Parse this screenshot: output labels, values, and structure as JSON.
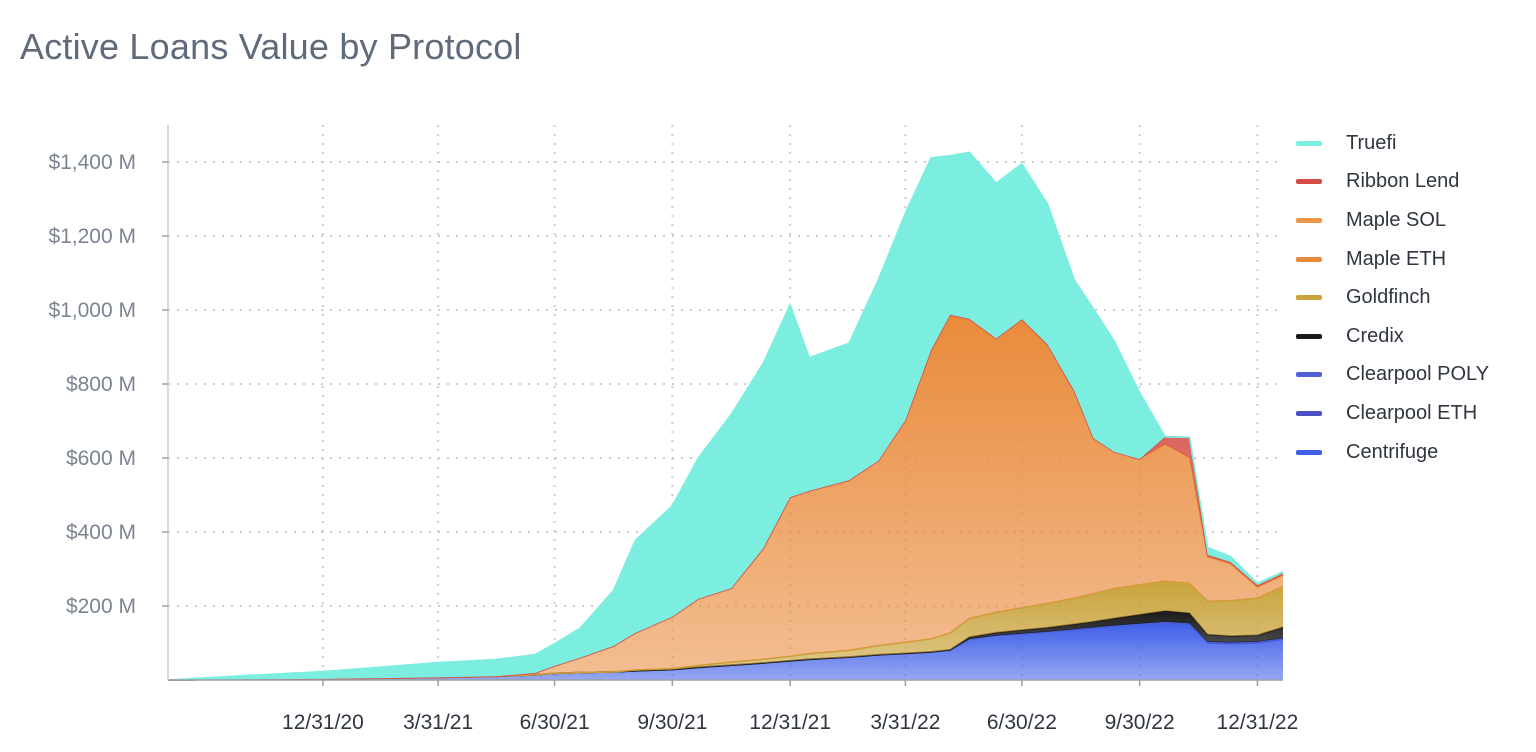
{
  "chart_data": {
    "type": "area",
    "title": "Active Loans Value by Protocol",
    "x_tick_labels": [
      "12/31/20",
      "3/31/21",
      "6/30/21",
      "9/30/21",
      "12/31/21",
      "3/31/22",
      "6/30/22",
      "9/30/22",
      "12/31/22"
    ],
    "x_ticks": [
      "2020-12-31",
      "2021-03-31",
      "2021-06-30",
      "2021-09-30",
      "2021-12-31",
      "2022-03-31",
      "2022-06-30",
      "2022-09-30",
      "2022-12-31"
    ],
    "xlim": [
      "2020-09-01",
      "2023-01-20"
    ],
    "y_tick_labels": [
      "$200 M",
      "$400 M",
      "$600 M",
      "$800 M",
      "$1,000 M",
      "$1,200 M",
      "$1,400 M"
    ],
    "y_ticks": [
      200,
      400,
      600,
      800,
      1000,
      1200,
      1400
    ],
    "ylim": [
      0,
      1500
    ],
    "grid": true,
    "legend_position": "right",
    "stacked": true,
    "x": [
      "2020-09-01",
      "2020-11-01",
      "2020-12-31",
      "2021-02-15",
      "2021-03-31",
      "2021-05-15",
      "2021-06-15",
      "2021-06-30",
      "2021-07-20",
      "2021-08-15",
      "2021-09-01",
      "2021-09-30",
      "2021-10-20",
      "2021-11-15",
      "2021-12-10",
      "2021-12-31",
      "2022-01-15",
      "2022-02-15",
      "2022-03-10",
      "2022-03-31",
      "2022-04-20",
      "2022-05-05",
      "2022-05-20",
      "2022-06-10",
      "2022-06-30",
      "2022-07-20",
      "2022-08-10",
      "2022-08-25",
      "2022-09-10",
      "2022-09-30",
      "2022-10-20",
      "2022-11-08",
      "2022-11-22",
      "2022-12-10",
      "2022-12-31",
      "2023-01-20"
    ],
    "series": [
      {
        "name": "Centrifuge",
        "color": "#3f5fe8",
        "values": [
          0,
          2,
          3,
          5,
          7,
          10,
          14,
          18,
          20,
          22,
          25,
          28,
          34,
          40,
          46,
          52,
          56,
          62,
          68,
          72,
          76,
          80,
          110,
          120,
          125,
          130,
          135,
          140,
          145,
          150,
          155,
          150,
          100,
          98,
          100,
          110
        ]
      },
      {
        "name": "Clearpool ETH",
        "color": "#4b4fc4",
        "values": [
          0,
          0,
          0,
          0,
          0,
          0,
          0,
          0,
          0,
          0,
          0,
          0,
          0,
          0,
          0,
          0,
          0,
          0,
          0,
          0,
          0,
          0,
          0,
          0,
          0,
          0,
          2,
          2,
          2,
          2,
          2,
          2,
          2,
          2,
          2,
          2
        ]
      },
      {
        "name": "Clearpool POLY",
        "color": "#5063d6",
        "values": [
          0,
          0,
          0,
          0,
          0,
          0,
          0,
          0,
          0,
          0,
          0,
          0,
          0,
          0,
          0,
          0,
          0,
          0,
          0,
          0,
          0,
          0,
          0,
          0,
          0,
          0,
          0,
          0,
          0,
          0,
          0,
          1,
          1,
          1,
          1,
          1
        ]
      },
      {
        "name": "Credix",
        "color": "#1a1a1a",
        "values": [
          0,
          0,
          0,
          0,
          0,
          0,
          0,
          0,
          0,
          0,
          0,
          0,
          0,
          0,
          0,
          0,
          0,
          0,
          0,
          0,
          0,
          2,
          6,
          8,
          10,
          12,
          14,
          16,
          20,
          25,
          30,
          28,
          20,
          18,
          18,
          30
        ]
      },
      {
        "name": "Goldfinch",
        "color": "#c9a33b",
        "values": [
          0,
          0,
          0,
          0,
          0,
          0,
          0,
          0,
          0,
          0,
          2,
          3,
          5,
          8,
          10,
          12,
          15,
          18,
          25,
          30,
          35,
          45,
          50,
          55,
          60,
          65,
          70,
          75,
          80,
          80,
          80,
          80,
          90,
          95,
          100,
          110
        ]
      },
      {
        "name": "Maple ETH",
        "color": "#e98a3a",
        "values": [
          0,
          0,
          0,
          0,
          0,
          0,
          5,
          20,
          40,
          70,
          100,
          140,
          180,
          200,
          300,
          430,
          440,
          460,
          500,
          600,
          780,
          860,
          810,
          740,
          780,
          700,
          560,
          420,
          370,
          340,
          370,
          340,
          120,
          100,
          30,
          30
        ]
      },
      {
        "name": "Maple SOL",
        "color": "#ef9547",
        "values": [
          0,
          0,
          0,
          0,
          0,
          0,
          0,
          0,
          0,
          0,
          0,
          0,
          0,
          0,
          0,
          0,
          0,
          0,
          0,
          0,
          0,
          0,
          0,
          0,
          0,
          0,
          0,
          0,
          0,
          0,
          0,
          0,
          0,
          0,
          0,
          0
        ]
      },
      {
        "name": "Ribbon Lend",
        "color": "#d64b45",
        "values": [
          0,
          0,
          0,
          0,
          0,
          0,
          0,
          0,
          0,
          0,
          0,
          0,
          0,
          0,
          0,
          0,
          0,
          0,
          0,
          0,
          0,
          0,
          0,
          0,
          0,
          0,
          0,
          0,
          0,
          0,
          20,
          55,
          5,
          5,
          5,
          5
        ]
      },
      {
        "name": "Truefi",
        "color": "#7beee0",
        "values": [
          0,
          10,
          20,
          30,
          40,
          45,
          50,
          60,
          80,
          150,
          250,
          300,
          380,
          470,
          500,
          520,
          360,
          370,
          490,
          560,
          520,
          430,
          450,
          420,
          420,
          380,
          300,
          350,
          300,
          180,
          0,
          0,
          20,
          15,
          5,
          5
        ]
      }
    ]
  },
  "legend": {
    "items": [
      {
        "label": "Truefi",
        "color": "#7beee0"
      },
      {
        "label": "Ribbon Lend",
        "color": "#d64b45"
      },
      {
        "label": "Maple SOL",
        "color": "#ef9547"
      },
      {
        "label": "Maple ETH",
        "color": "#e98a3a"
      },
      {
        "label": "Goldfinch",
        "color": "#c9a33b"
      },
      {
        "label": "Credix",
        "color": "#1a1a1a"
      },
      {
        "label": "Clearpool POLY",
        "color": "#5063d6"
      },
      {
        "label": "Clearpool ETH",
        "color": "#4b4fc4"
      },
      {
        "label": "Centrifuge",
        "color": "#3f5fe8"
      }
    ]
  }
}
